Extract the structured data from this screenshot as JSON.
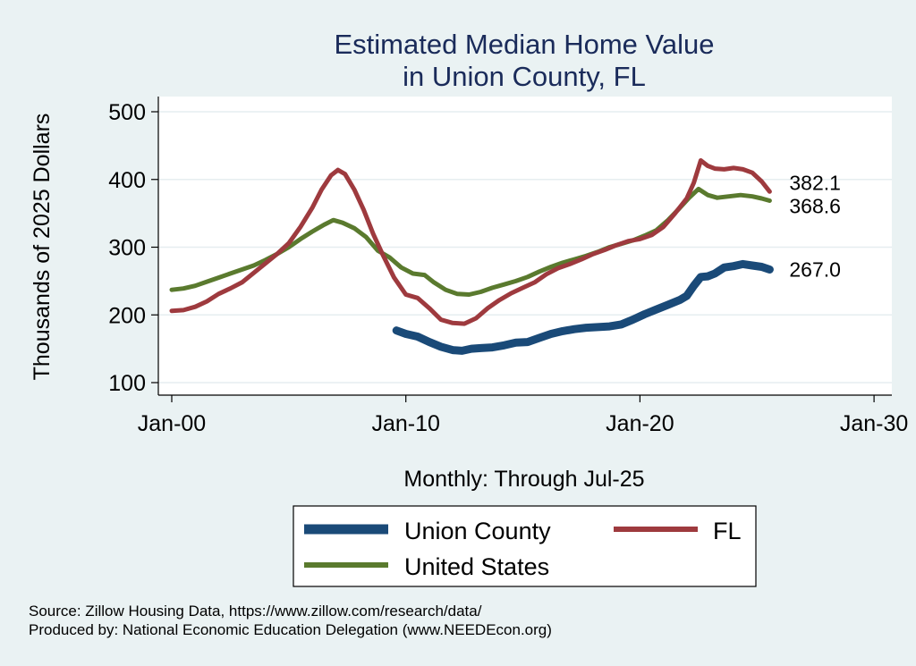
{
  "chart_data": {
    "type": "line",
    "title": [
      "Estimated Median Home Value",
      "in Union County, FL"
    ],
    "ylabel": "Thousands of 2025 Dollars",
    "xlabel": "Monthly: Through Jul-25",
    "ylim": [
      90,
      520
    ],
    "xlim": [
      2000,
      2030.5
    ],
    "yticks": [
      100,
      200,
      300,
      400,
      500
    ],
    "xticks": [
      {
        "value": 2000,
        "label": "Jan-00"
      },
      {
        "value": 2010,
        "label": "Jan-10"
      },
      {
        "value": 2020,
        "label": "Jan-20"
      },
      {
        "value": 2030,
        "label": "Jan-30"
      }
    ],
    "grid": true,
    "series": [
      {
        "name": "Union County",
        "color": "#1a4a78",
        "end_label": "267.0",
        "points": [
          [
            2009.6,
            177
          ],
          [
            2010.0,
            172
          ],
          [
            2010.5,
            168
          ],
          [
            2011.0,
            160
          ],
          [
            2011.5,
            153
          ],
          [
            2012.0,
            148
          ],
          [
            2012.4,
            147
          ],
          [
            2012.8,
            150
          ],
          [
            2013.2,
            151
          ],
          [
            2013.7,
            152
          ],
          [
            2014.2,
            155
          ],
          [
            2014.7,
            159
          ],
          [
            2015.2,
            160
          ],
          [
            2015.7,
            166
          ],
          [
            2016.2,
            172
          ],
          [
            2016.7,
            176
          ],
          [
            2017.2,
            179
          ],
          [
            2017.7,
            181
          ],
          [
            2018.2,
            182
          ],
          [
            2018.7,
            183
          ],
          [
            2019.2,
            186
          ],
          [
            2019.7,
            193
          ],
          [
            2020.2,
            201
          ],
          [
            2020.7,
            208
          ],
          [
            2021.2,
            215
          ],
          [
            2021.7,
            222
          ],
          [
            2022.0,
            228
          ],
          [
            2022.3,
            243
          ],
          [
            2022.6,
            256
          ],
          [
            2022.9,
            257
          ],
          [
            2023.2,
            261
          ],
          [
            2023.6,
            270
          ],
          [
            2024.0,
            272
          ],
          [
            2024.4,
            275
          ],
          [
            2024.8,
            273
          ],
          [
            2025.2,
            271
          ],
          [
            2025.54,
            267.0
          ]
        ]
      },
      {
        "name": "FL",
        "color": "#9e3a3e",
        "end_label": "382.1",
        "points": [
          [
            2000.0,
            206
          ],
          [
            2000.5,
            207
          ],
          [
            2001.0,
            212
          ],
          [
            2001.5,
            220
          ],
          [
            2002.0,
            231
          ],
          [
            2002.5,
            239
          ],
          [
            2003.0,
            248
          ],
          [
            2003.5,
            262
          ],
          [
            2004.0,
            276
          ],
          [
            2004.5,
            290
          ],
          [
            2005.0,
            306
          ],
          [
            2005.5,
            330
          ],
          [
            2006.0,
            358
          ],
          [
            2006.4,
            385
          ],
          [
            2006.8,
            406
          ],
          [
            2007.1,
            414
          ],
          [
            2007.4,
            408
          ],
          [
            2007.8,
            385
          ],
          [
            2008.2,
            355
          ],
          [
            2008.6,
            320
          ],
          [
            2009.0,
            290
          ],
          [
            2009.5,
            255
          ],
          [
            2010.0,
            230
          ],
          [
            2010.5,
            225
          ],
          [
            2011.0,
            210
          ],
          [
            2011.5,
            193
          ],
          [
            2012.0,
            188
          ],
          [
            2012.5,
            187
          ],
          [
            2013.0,
            195
          ],
          [
            2013.5,
            210
          ],
          [
            2014.0,
            222
          ],
          [
            2014.5,
            232
          ],
          [
            2015.0,
            240
          ],
          [
            2015.5,
            248
          ],
          [
            2016.0,
            260
          ],
          [
            2016.5,
            269
          ],
          [
            2017.0,
            275
          ],
          [
            2017.5,
            282
          ],
          [
            2018.0,
            290
          ],
          [
            2018.5,
            296
          ],
          [
            2019.0,
            303
          ],
          [
            2019.5,
            309
          ],
          [
            2020.0,
            312
          ],
          [
            2020.5,
            318
          ],
          [
            2021.0,
            330
          ],
          [
            2021.5,
            350
          ],
          [
            2022.0,
            372
          ],
          [
            2022.3,
            395
          ],
          [
            2022.6,
            428
          ],
          [
            2022.9,
            420
          ],
          [
            2023.2,
            416
          ],
          [
            2023.6,
            415
          ],
          [
            2024.0,
            417
          ],
          [
            2024.4,
            415
          ],
          [
            2024.8,
            410
          ],
          [
            2025.2,
            397
          ],
          [
            2025.54,
            382.1
          ]
        ]
      },
      {
        "name": "United States",
        "color": "#5a7a2e",
        "end_label": "368.6",
        "points": [
          [
            2000.0,
            237
          ],
          [
            2000.5,
            239
          ],
          [
            2001.0,
            243
          ],
          [
            2001.5,
            249
          ],
          [
            2002.0,
            255
          ],
          [
            2002.5,
            261
          ],
          [
            2003.0,
            267
          ],
          [
            2003.5,
            273
          ],
          [
            2004.0,
            281
          ],
          [
            2004.5,
            290
          ],
          [
            2005.0,
            300
          ],
          [
            2005.5,
            312
          ],
          [
            2006.0,
            323
          ],
          [
            2006.5,
            333
          ],
          [
            2006.9,
            340
          ],
          [
            2007.3,
            336
          ],
          [
            2007.8,
            328
          ],
          [
            2008.3,
            315
          ],
          [
            2008.8,
            295
          ],
          [
            2009.3,
            285
          ],
          [
            2009.8,
            270
          ],
          [
            2010.3,
            261
          ],
          [
            2010.8,
            259
          ],
          [
            2011.2,
            248
          ],
          [
            2011.7,
            237
          ],
          [
            2012.2,
            231
          ],
          [
            2012.7,
            230
          ],
          [
            2013.2,
            234
          ],
          [
            2013.7,
            240
          ],
          [
            2014.2,
            245
          ],
          [
            2014.7,
            250
          ],
          [
            2015.2,
            256
          ],
          [
            2015.7,
            264
          ],
          [
            2016.2,
            271
          ],
          [
            2016.7,
            277
          ],
          [
            2017.2,
            282
          ],
          [
            2017.7,
            287
          ],
          [
            2018.2,
            293
          ],
          [
            2018.7,
            300
          ],
          [
            2019.2,
            305
          ],
          [
            2019.7,
            310
          ],
          [
            2020.2,
            317
          ],
          [
            2020.7,
            325
          ],
          [
            2021.2,
            340
          ],
          [
            2021.7,
            358
          ],
          [
            2022.1,
            373
          ],
          [
            2022.5,
            386
          ],
          [
            2022.9,
            377
          ],
          [
            2023.3,
            373
          ],
          [
            2023.8,
            375
          ],
          [
            2024.3,
            377
          ],
          [
            2024.8,
            375
          ],
          [
            2025.2,
            372
          ],
          [
            2025.54,
            368.6
          ]
        ]
      }
    ],
    "legend": [
      {
        "label": "Union County",
        "series": 0
      },
      {
        "label": "FL",
        "series": 1
      },
      {
        "label": "United States",
        "series": 2
      }
    ]
  },
  "footer": {
    "source": "Source: Zillow Housing Data, https://www.zillow.com/research/data/",
    "produced": "Produced by: National Economic Education Delegation (www.NEEDEcon.org)"
  }
}
